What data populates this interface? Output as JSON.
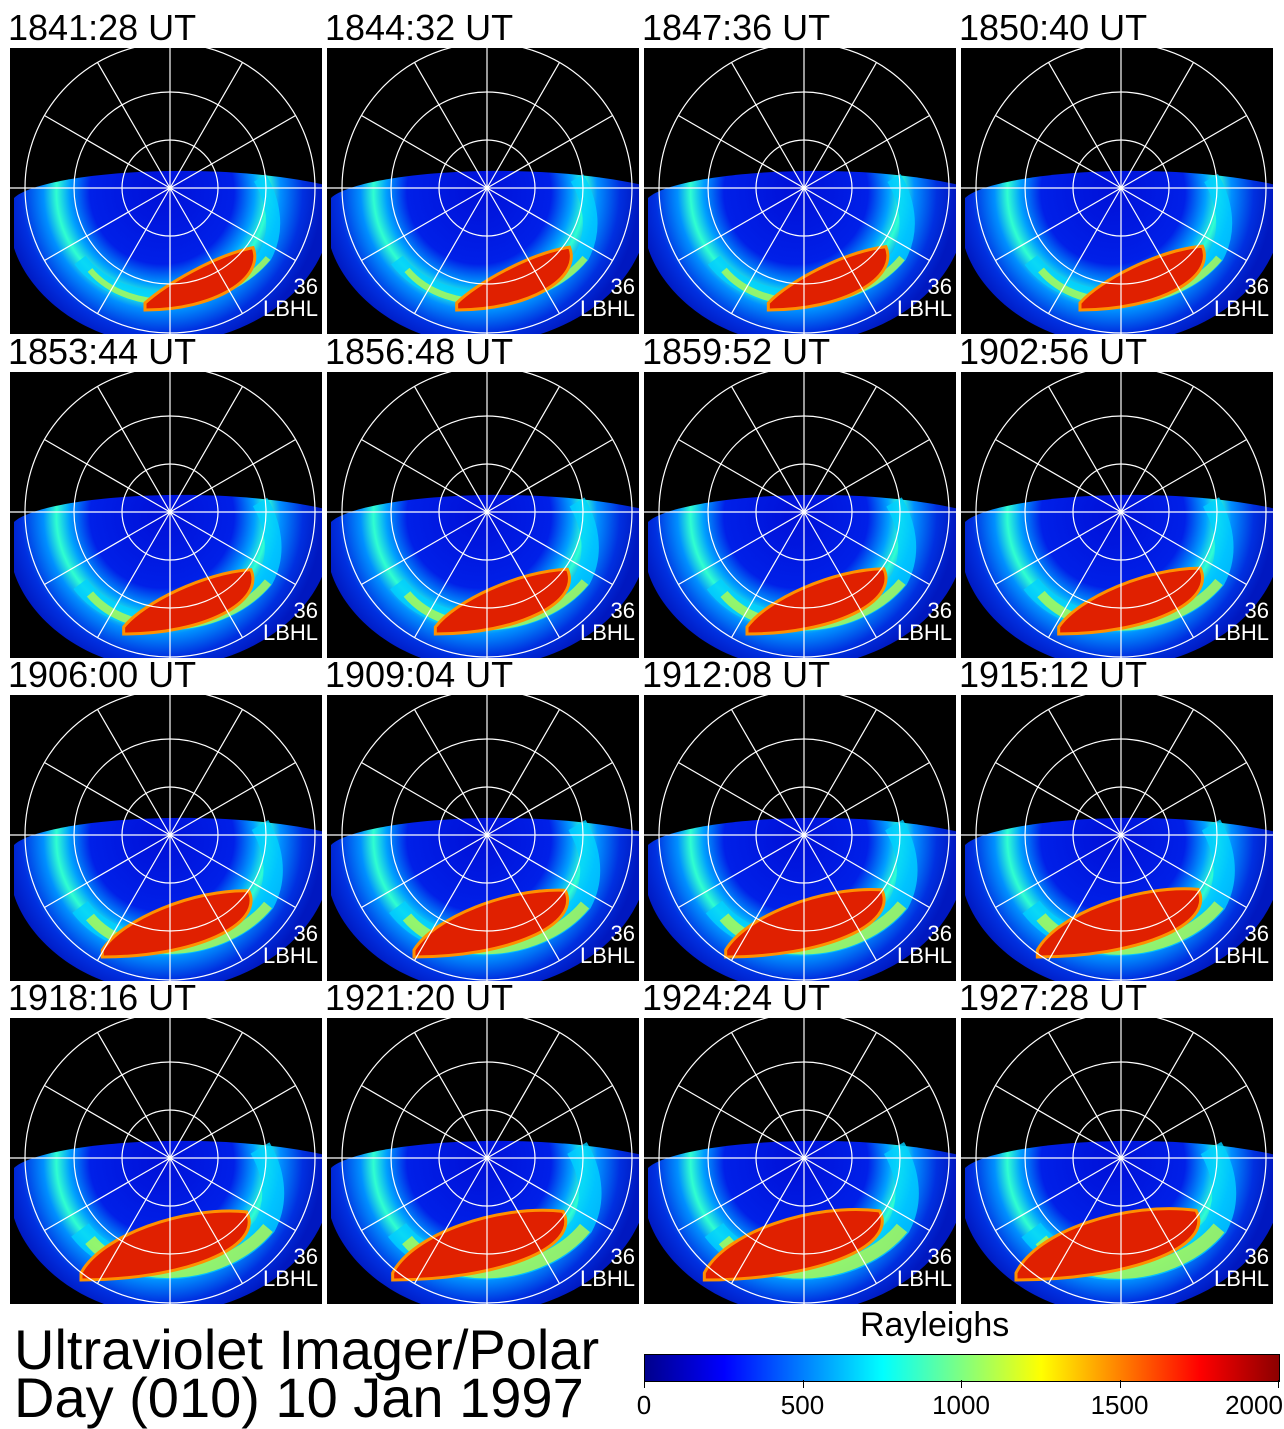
{
  "panels": [
    {
      "time": "1841:28 UT",
      "num": "36",
      "filter": "LBHL"
    },
    {
      "time": "1844:32 UT",
      "num": "36",
      "filter": "LBHL"
    },
    {
      "time": "1847:36 UT",
      "num": "36",
      "filter": "LBHL"
    },
    {
      "time": "1850:40 UT",
      "num": "36",
      "filter": "LBHL"
    },
    {
      "time": "1853:44 UT",
      "num": "36",
      "filter": "LBHL"
    },
    {
      "time": "1856:48 UT",
      "num": "36",
      "filter": "LBHL"
    },
    {
      "time": "1859:52 UT",
      "num": "36",
      "filter": "LBHL"
    },
    {
      "time": "1902:56 UT",
      "num": "36",
      "filter": "LBHL"
    },
    {
      "time": "1906:00 UT",
      "num": "36",
      "filter": "LBHL"
    },
    {
      "time": "1909:04 UT",
      "num": "36",
      "filter": "LBHL"
    },
    {
      "time": "1912:08 UT",
      "num": "36",
      "filter": "LBHL"
    },
    {
      "time": "1915:12 UT",
      "num": "36",
      "filter": "LBHL"
    },
    {
      "time": "1918:16 UT",
      "num": "36",
      "filter": "LBHL"
    },
    {
      "time": "1921:20 UT",
      "num": "36",
      "filter": "LBHL"
    },
    {
      "time": "1924:24 UT",
      "num": "36",
      "filter": "LBHL"
    },
    {
      "time": "1927:28 UT",
      "num": "36",
      "filter": "LBHL"
    }
  ],
  "title": {
    "line1": "Ultraviolet Imager/Polar",
    "line2": "Day (010) 10 Jan 1997"
  },
  "colorbar": {
    "label": "Rayleighs",
    "ticks": [
      "0",
      "500",
      "1000",
      "1500",
      "2000"
    ],
    "colors": [
      "#00008c",
      "#0000ff",
      "#0080ff",
      "#00ffff",
      "#80ff80",
      "#ffff00",
      "#ff8000",
      "#ff0000",
      "#8c0000"
    ]
  }
}
